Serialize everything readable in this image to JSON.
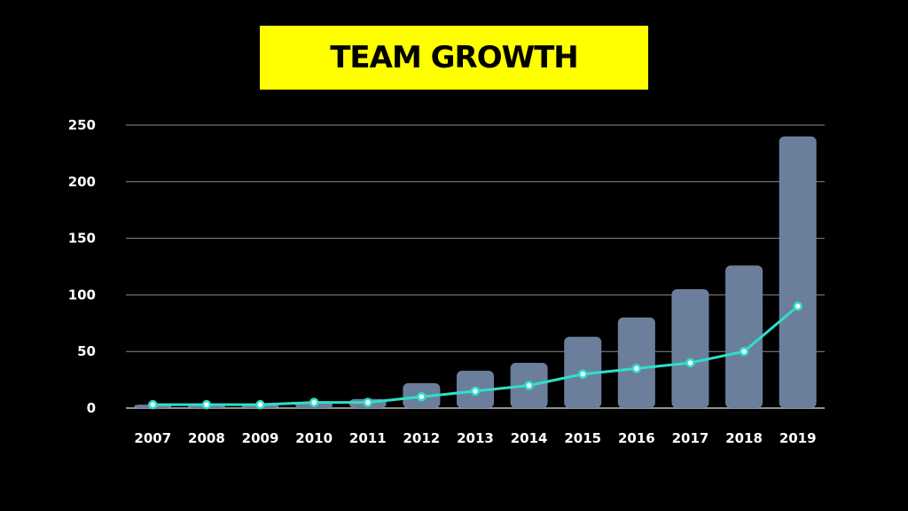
{
  "title": "TEAM GROWTH",
  "colors": {
    "background": "#000000",
    "title_bg": "#ffff00",
    "bar": "#6b7f9c",
    "line": "#2ee0c8",
    "grid": "#8a8a8a",
    "text": "#ffffff"
  },
  "chart_data": {
    "type": "bar",
    "title": "TEAM GROWTH",
    "xlabel": "",
    "ylabel": "",
    "ylim": [
      0,
      250
    ],
    "yticks": [
      0,
      50,
      100,
      150,
      200,
      250
    ],
    "grid": true,
    "legend": "none",
    "categories": [
      "2007",
      "2008",
      "2009",
      "2010",
      "2011",
      "2012",
      "2013",
      "2014",
      "2015",
      "2016",
      "2017",
      "2018",
      "2019"
    ],
    "series": [
      {
        "kind": "bar",
        "values": [
          3,
          3,
          3,
          5,
          8,
          22,
          33,
          40,
          63,
          80,
          105,
          126,
          240
        ]
      },
      {
        "kind": "line",
        "values": [
          3,
          3,
          3,
          5,
          5,
          10,
          15,
          20,
          30,
          35,
          40,
          50,
          90
        ]
      }
    ]
  }
}
